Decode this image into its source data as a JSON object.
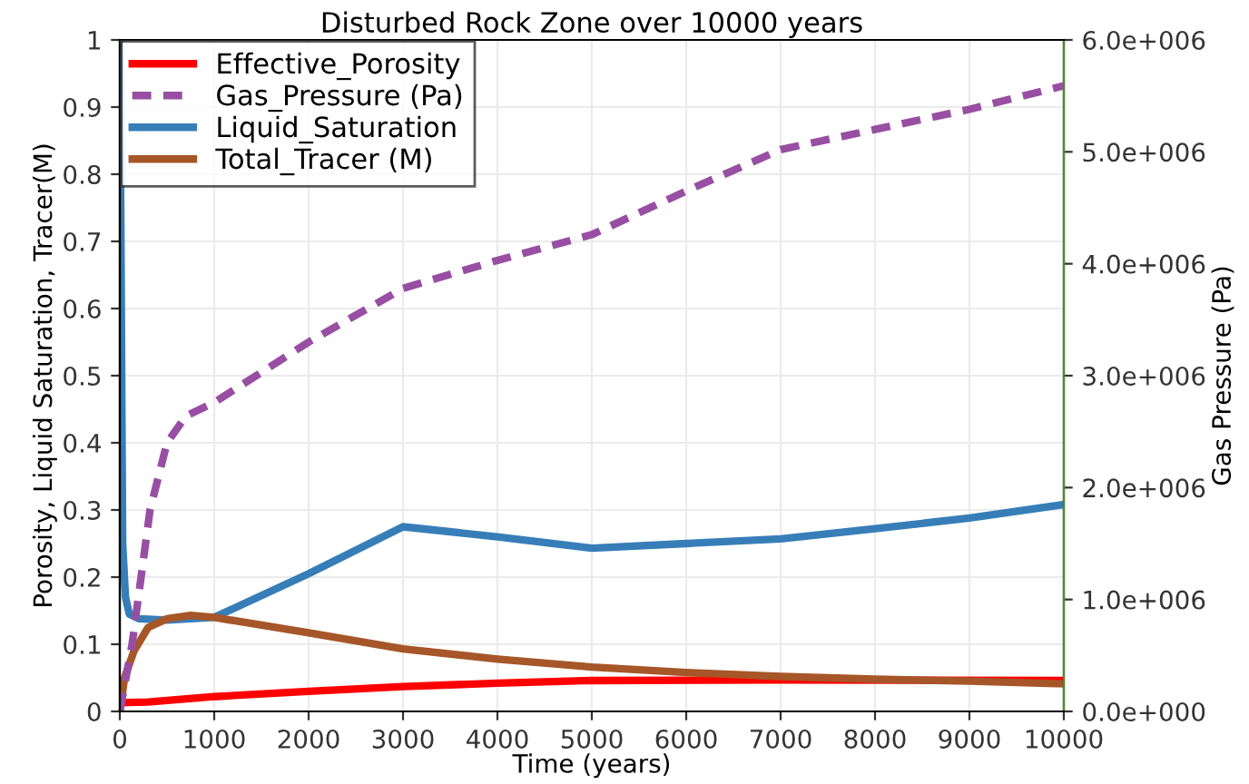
{
  "chart_data": {
    "type": "line",
    "title": "Disturbed Rock Zone over 10000 years",
    "xlabel": "Time (years)",
    "ylabel": "Porosity, Liquid Saturation, Tracer(M)",
    "y2label": "Gas Pressure (Pa)",
    "xlim": [
      0,
      10000
    ],
    "xticks": [
      0,
      1000,
      2000,
      3000,
      4000,
      5000,
      6000,
      7000,
      8000,
      9000,
      10000
    ],
    "ylim": [
      0,
      1
    ],
    "yticks": [
      0,
      0.1,
      0.2,
      0.3,
      0.4,
      0.5,
      0.6,
      0.7,
      0.8,
      0.9,
      1
    ],
    "y2lim": [
      0,
      6000000
    ],
    "y2ticks": [
      {
        "value": 0,
        "label": "0.0e+000"
      },
      {
        "value": 1000000,
        "label": "1.0e+006"
      },
      {
        "value": 2000000,
        "label": "2.0e+006"
      },
      {
        "value": 3000000,
        "label": "3.0e+006"
      },
      {
        "value": 4000000,
        "label": "4.0e+006"
      },
      {
        "value": 5000000,
        "label": "5.0e+006"
      },
      {
        "value": 6000000,
        "label": "6.0e+006"
      }
    ],
    "grid": true,
    "legend": "top left",
    "series": [
      {
        "name": "Effective_Porosity",
        "color": "#ff0000",
        "x": [
          0,
          300,
          1000,
          2000,
          3000,
          4000,
          5000,
          7000,
          10000
        ],
        "values": [
          0.013,
          0.014,
          0.022,
          0.03,
          0.037,
          0.042,
          0.046,
          0.047,
          0.046
        ]
      },
      {
        "name": "Gas_Pressure (Pa)",
        "color": "#984ea3",
        "axis": "y2",
        "line_style": "dashed",
        "x": [
          0,
          130,
          320,
          500,
          700,
          1000,
          2000,
          3000,
          4000,
          5000,
          6000,
          7000,
          8000,
          9000,
          10000
        ],
        "values": [
          0,
          600000,
          1800000,
          2400000,
          2640000,
          2760000,
          3300000,
          3780000,
          4030000,
          4260000,
          4650000,
          5020000,
          5200000,
          5380000,
          5590000
        ]
      },
      {
        "name": "Liquid_Saturation",
        "color": "#377eb8",
        "x": [
          0,
          10,
          30,
          60,
          100,
          200,
          500,
          1000,
          2000,
          3000,
          4000,
          5000,
          6000,
          7000,
          8000,
          9000,
          10000
        ],
        "values": [
          1,
          0.75,
          0.25,
          0.17,
          0.145,
          0.138,
          0.136,
          0.14,
          0.205,
          0.275,
          0.26,
          0.243,
          0.25,
          0.257,
          0.272,
          0.288,
          0.308
        ]
      },
      {
        "name": "Total_Tracer (M)",
        "color": "#a65628",
        "x": [
          0,
          50,
          150,
          300,
          500,
          750,
          1000,
          2000,
          3000,
          4000,
          5000,
          6000,
          7000,
          8000,
          9000,
          10000
        ],
        "values": [
          0,
          0.05,
          0.09,
          0.125,
          0.138,
          0.143,
          0.14,
          0.117,
          0.093,
          0.078,
          0.066,
          0.058,
          0.052,
          0.048,
          0.045,
          0.041
        ]
      }
    ]
  }
}
